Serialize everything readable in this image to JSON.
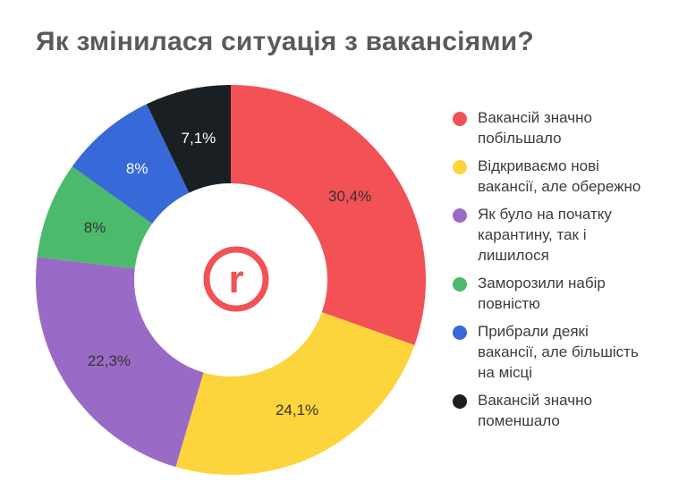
{
  "chart_data": {
    "type": "pie",
    "title": "Як змінилася ситуація з вакансіями?",
    "donut": true,
    "categories": [
      "Вакансій значно побільшало",
      "Відкриваємо нові вакансії, але обережно",
      "Як було на початку карантину, так і лишилося",
      "Заморозили набір повністю",
      "Прибрали деякі вакансії, але більшість на місці",
      "Вакансій значно поменшало"
    ],
    "values": [
      30.4,
      24.1,
      22.3,
      8,
      8,
      7.1
    ],
    "value_labels": [
      "30,4%",
      "24,1%",
      "22,3%",
      "8%",
      "8%",
      "7,1%"
    ],
    "colors": [
      "#f25156",
      "#fcd53c",
      "#9a6bc6",
      "#4cba6d",
      "#3769d8",
      "#1a1f24"
    ],
    "legend_position": "right"
  },
  "legend": [
    {
      "lines": [
        "Вакансій значно",
        "побільшало"
      ]
    },
    {
      "lines": [
        "Відкриваємо нові",
        "вакансії, але обережно"
      ]
    },
    {
      "lines": [
        "Як було на початку",
        "карантину, так і",
        "лишилося"
      ]
    },
    {
      "lines": [
        "Заморозили набір",
        "повністю"
      ]
    },
    {
      "lines": [
        "Прибрали деякі",
        "вакансії, але більшість",
        "на місці"
      ]
    },
    {
      "lines": [
        "Вакансій значно",
        "поменшало"
      ]
    }
  ],
  "logo": {
    "letter": "r",
    "color": "#f25156",
    "icon": "rabota-logo-icon"
  }
}
